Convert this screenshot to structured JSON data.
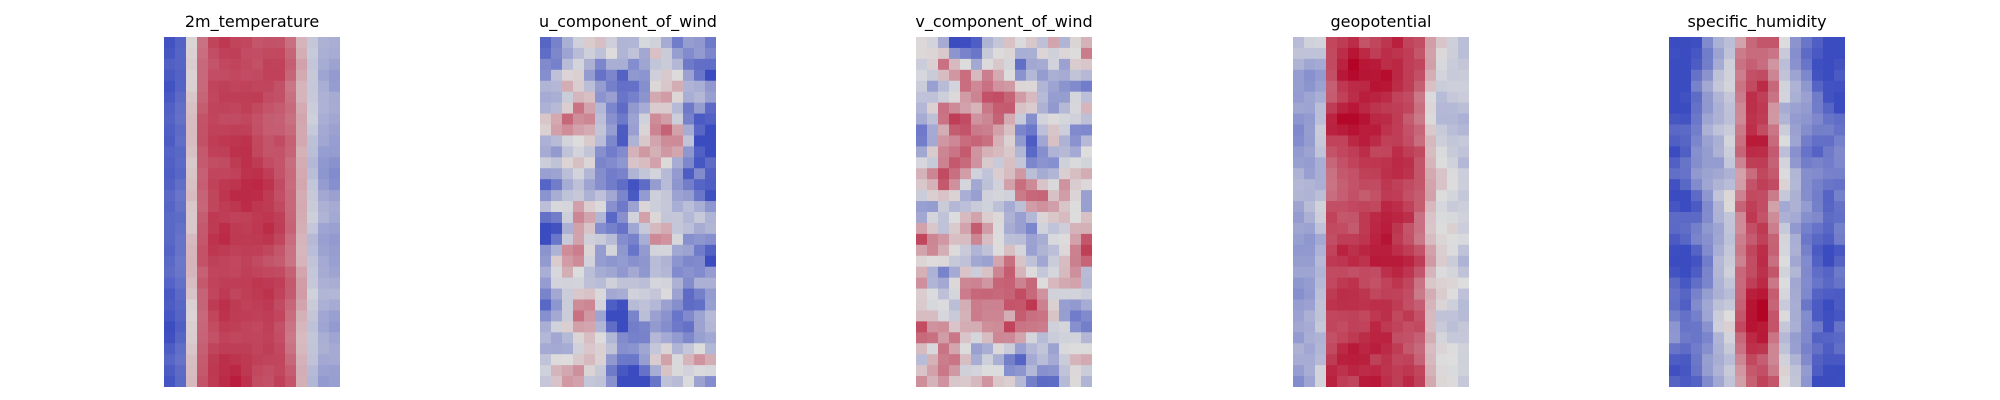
{
  "colormap": {
    "name": "coolwarm",
    "low": "#3b4cc0",
    "mid": "#dddddd",
    "high": "#b40426",
    "range": [
      0,
      1
    ]
  },
  "chart_data": [
    {
      "type": "heatmap",
      "title": "2m_temperature",
      "axes_visible": false,
      "grid": false,
      "columns": 16,
      "rows": 32,
      "profile": [
        0.06,
        0.1,
        0.55,
        0.78,
        0.85,
        0.86,
        0.86,
        0.87,
        0.87,
        0.86,
        0.84,
        0.78,
        0.62,
        0.42,
        0.32,
        0.3
      ],
      "noise": 0.05,
      "seed": 11
    },
    {
      "type": "heatmap",
      "title": "u_component_of_wind",
      "axes_visible": false,
      "grid": false,
      "columns": 16,
      "rows": 32,
      "profile": [
        0.3,
        0.35,
        0.45,
        0.55,
        0.5,
        0.4,
        0.3,
        0.2,
        0.25,
        0.35,
        0.5,
        0.55,
        0.45,
        0.35,
        0.3,
        0.25
      ],
      "noise": 0.32,
      "seed": 23
    },
    {
      "type": "heatmap",
      "title": "v_component_of_wind",
      "axes_visible": false,
      "grid": false,
      "columns": 16,
      "rows": 32,
      "profile": [
        0.55,
        0.5,
        0.5,
        0.5,
        0.5,
        0.5,
        0.5,
        0.5,
        0.5,
        0.5,
        0.5,
        0.5,
        0.5,
        0.5,
        0.5,
        0.5
      ],
      "noise": 0.36,
      "seed": 37
    },
    {
      "type": "heatmap",
      "title": "geopotential",
      "axes_visible": false,
      "grid": false,
      "columns": 16,
      "rows": 32,
      "profile": [
        0.3,
        0.32,
        0.4,
        0.85,
        0.88,
        0.9,
        0.9,
        0.9,
        0.9,
        0.88,
        0.85,
        0.8,
        0.6,
        0.5,
        0.45,
        0.4
      ],
      "noise": 0.1,
      "seed": 41
    },
    {
      "type": "heatmap",
      "title": "specific_humidity",
      "axes_visible": false,
      "grid": false,
      "columns": 16,
      "rows": 32,
      "profile": [
        0.05,
        0.05,
        0.15,
        0.25,
        0.35,
        0.45,
        0.75,
        0.88,
        0.88,
        0.75,
        0.45,
        0.32,
        0.22,
        0.12,
        0.05,
        0.05
      ],
      "noise": 0.14,
      "seed": 53
    }
  ]
}
